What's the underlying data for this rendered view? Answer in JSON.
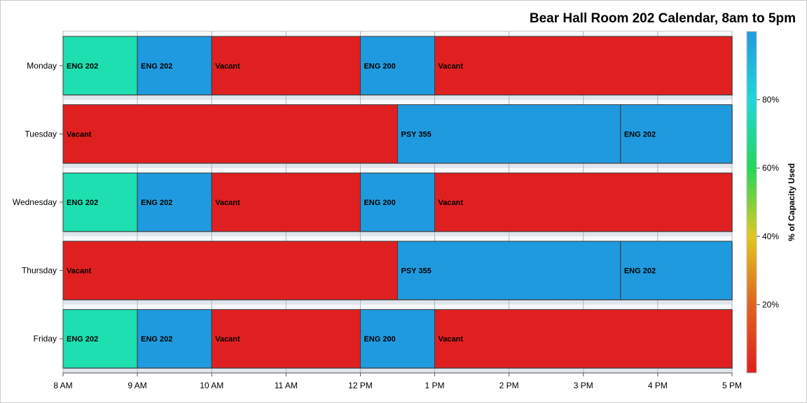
{
  "chart_data": {
    "type": "bar",
    "orientation": "horizontal",
    "subtype": "stacked-timeline",
    "title": "Bear Hall Room 202 Calendar, 8am to 5pm",
    "x_range": [
      8,
      17
    ],
    "x_tick_values": [
      8,
      9,
      10,
      11,
      12,
      13,
      14,
      15,
      16,
      17
    ],
    "x_tick_labels": [
      "8 AM",
      "9 AM",
      "10 AM",
      "11 AM",
      "12 PM",
      "1 PM",
      "2 PM",
      "3 PM",
      "4 PM",
      "5 PM"
    ],
    "categories": [
      "Monday",
      "Tuesday",
      "Wednesday",
      "Thursday",
      "Friday"
    ],
    "rows": [
      {
        "day": "Monday",
        "segments": [
          {
            "label": "ENG 202",
            "start": 8,
            "end": 9,
            "capacity_pct": 88,
            "color": "#1ddfb0"
          },
          {
            "label": "ENG 202",
            "start": 9,
            "end": 10,
            "capacity_pct": 98,
            "color": "#209ade"
          },
          {
            "label": "Vacant",
            "start": 10,
            "end": 12,
            "capacity_pct": 0,
            "color": "#e02020"
          },
          {
            "label": "ENG 200",
            "start": 12,
            "end": 13,
            "capacity_pct": 98,
            "color": "#209ade"
          },
          {
            "label": "Vacant",
            "start": 13,
            "end": 17,
            "capacity_pct": 0,
            "color": "#e02020"
          }
        ]
      },
      {
        "day": "Tuesday",
        "segments": [
          {
            "label": "Vacant",
            "start": 8,
            "end": 12.5,
            "capacity_pct": 0,
            "color": "#e02020"
          },
          {
            "label": "PSY 355",
            "start": 12.5,
            "end": 15.5,
            "capacity_pct": 98,
            "color": "#209ade"
          },
          {
            "label": "ENG 202",
            "start": 15.5,
            "end": 17,
            "capacity_pct": 98,
            "color": "#209ade"
          }
        ]
      },
      {
        "day": "Wednesday",
        "segments": [
          {
            "label": "ENG 202",
            "start": 8,
            "end": 9,
            "capacity_pct": 88,
            "color": "#1ddfb0"
          },
          {
            "label": "ENG 202",
            "start": 9,
            "end": 10,
            "capacity_pct": 98,
            "color": "#209ade"
          },
          {
            "label": "Vacant",
            "start": 10,
            "end": 12,
            "capacity_pct": 0,
            "color": "#e02020"
          },
          {
            "label": "ENG 200",
            "start": 12,
            "end": 13,
            "capacity_pct": 98,
            "color": "#209ade"
          },
          {
            "label": "Vacant",
            "start": 13,
            "end": 17,
            "capacity_pct": 0,
            "color": "#e02020"
          }
        ]
      },
      {
        "day": "Thursday",
        "segments": [
          {
            "label": "Vacant",
            "start": 8,
            "end": 12.5,
            "capacity_pct": 0,
            "color": "#e02020"
          },
          {
            "label": "PSY 355",
            "start": 12.5,
            "end": 15.5,
            "capacity_pct": 98,
            "color": "#209ade"
          },
          {
            "label": "ENG 202",
            "start": 15.5,
            "end": 17,
            "capacity_pct": 98,
            "color": "#209ade"
          }
        ]
      },
      {
        "day": "Friday",
        "segments": [
          {
            "label": "ENG 202",
            "start": 8,
            "end": 9,
            "capacity_pct": 88,
            "color": "#1ddfb0"
          },
          {
            "label": "ENG 202",
            "start": 9,
            "end": 10,
            "capacity_pct": 98,
            "color": "#209ade"
          },
          {
            "label": "Vacant",
            "start": 10,
            "end": 12,
            "capacity_pct": 0,
            "color": "#e02020"
          },
          {
            "label": "ENG 200",
            "start": 12,
            "end": 13,
            "capacity_pct": 98,
            "color": "#209ade"
          },
          {
            "label": "Vacant",
            "start": 13,
            "end": 17,
            "capacity_pct": 0,
            "color": "#e02020"
          }
        ]
      }
    ],
    "colorbar": {
      "title": "% of Capacity Used",
      "range": [
        0,
        100
      ],
      "tick_values": [
        20,
        40,
        60,
        80
      ],
      "tick_labels": [
        "20%",
        "40%",
        "60%",
        "80%"
      ],
      "stops": [
        "#e01f20",
        "#e0641f",
        "#e0c81f",
        "#22d75a",
        "#1fd8da",
        "#209ade"
      ],
      "position": "right"
    },
    "grid": true,
    "legend": "right"
  }
}
